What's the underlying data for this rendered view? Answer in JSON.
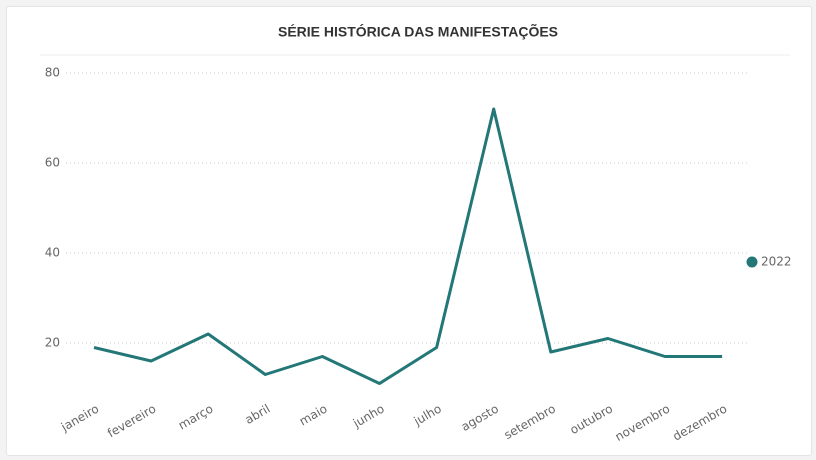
{
  "chart_data": {
    "type": "line",
    "title": "SÉRIE HISTÓRICA DAS MANIFESTAÇÕES",
    "categories": [
      "janeiro",
      "fevereiro",
      "março",
      "abril",
      "maio",
      "junho",
      "julho",
      "agosto",
      "setembro",
      "outubro",
      "novembro",
      "dezembro"
    ],
    "series": [
      {
        "name": "2022",
        "color": "#237777",
        "values": [
          19,
          16,
          22,
          13,
          17,
          11,
          19,
          72,
          18,
          21,
          17,
          17
        ]
      }
    ],
    "ylim": [
      8,
      80
    ],
    "yticks": [
      20,
      40,
      60,
      80
    ],
    "grid": true,
    "legend": "right"
  }
}
